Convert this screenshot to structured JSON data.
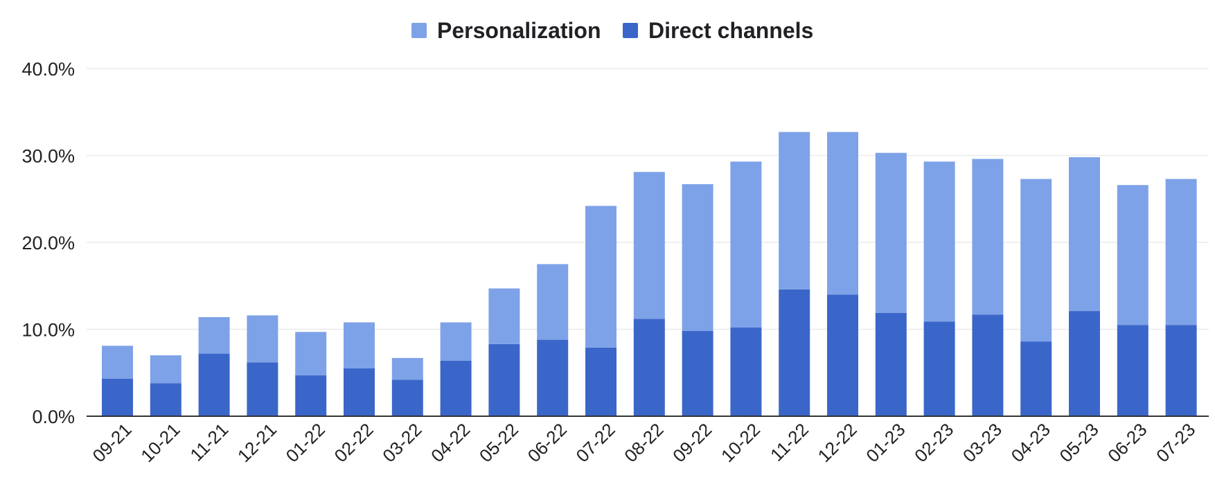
{
  "chart_data": {
    "type": "bar",
    "stacked": true,
    "title": "",
    "xlabel": "",
    "ylabel": "",
    "categories": [
      "09-21",
      "10-21",
      "11-21",
      "12-21",
      "01-22",
      "02-22",
      "03-22",
      "04-22",
      "05-22",
      "06-22",
      "07-22",
      "08-22",
      "09-22",
      "10-22",
      "11-22",
      "12-22",
      "01-23",
      "02-23",
      "03-23",
      "04-23",
      "05-23",
      "06-23",
      "07-23"
    ],
    "series": [
      {
        "name": "Direct channels",
        "color": "#3b66c9",
        "values": [
          4.3,
          3.8,
          7.2,
          6.2,
          4.7,
          5.5,
          4.2,
          6.4,
          8.3,
          8.8,
          7.9,
          11.2,
          9.8,
          10.2,
          14.6,
          14.0,
          11.9,
          10.9,
          11.7,
          8.6,
          12.1,
          10.5,
          10.5
        ]
      },
      {
        "name": "Personalization",
        "color": "#7ea2e8",
        "values": [
          3.8,
          3.2,
          4.2,
          5.4,
          5.0,
          5.3,
          2.5,
          4.4,
          6.4,
          8.7,
          16.3,
          16.9,
          16.9,
          19.1,
          18.1,
          18.7,
          18.4,
          18.4,
          17.9,
          18.7,
          17.7,
          16.1,
          16.8
        ]
      }
    ],
    "ylim": [
      0,
      40
    ],
    "yticks": [
      "0.0%",
      "10.0%",
      "20.0%",
      "30.0%",
      "40.0%"
    ],
    "ytick_values": [
      0,
      10,
      20,
      30,
      40
    ],
    "grid": true,
    "legend_position": "top-center",
    "legend": [
      {
        "label": "Personalization",
        "color": "#7ea2e8"
      },
      {
        "label": "Direct channels",
        "color": "#3b66c9"
      }
    ]
  }
}
